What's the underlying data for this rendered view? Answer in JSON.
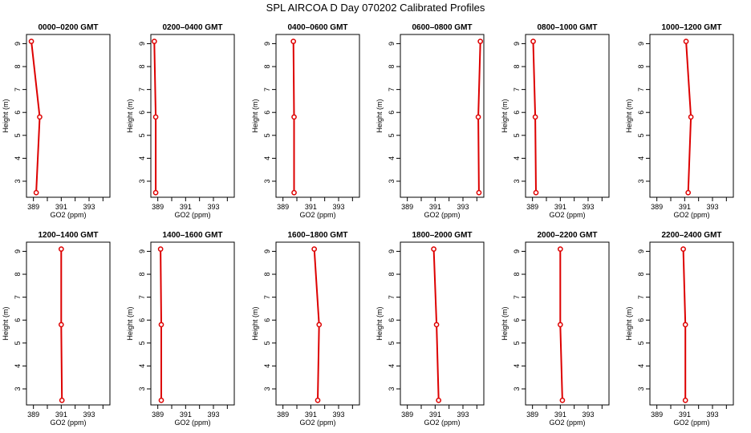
{
  "title": "SPL AIRCOA D  Day 070202  Calibrated Profiles",
  "colors": {
    "line": "#dd0000",
    "axis": "#000000"
  },
  "chart_data": [
    {
      "type": "line",
      "title": "0000–0200 GMT",
      "xlabel": "GO2 (ppm)",
      "ylabel": "Height (m)",
      "xlim": [
        388.5,
        394.5
      ],
      "ylim": [
        2.3,
        9.4
      ],
      "xticks": [
        "389",
        "391",
        "393"
      ],
      "yticks": [
        "3",
        "4",
        "5",
        "6",
        "7",
        "8",
        "9"
      ],
      "series": [
        {
          "x": [
            388.85,
            389.45,
            389.2
          ],
          "y": [
            9.1,
            5.8,
            2.5
          ]
        }
      ]
    },
    {
      "type": "line",
      "title": "0200–0400 GMT",
      "xlabel": "GO2 (ppm)",
      "ylabel": "Height (m)",
      "xlim": [
        388.5,
        394.5
      ],
      "ylim": [
        2.3,
        9.4
      ],
      "xticks": [
        "389",
        "391",
        "393"
      ],
      "yticks": [
        "3",
        "4",
        "5",
        "6",
        "7",
        "8",
        "9"
      ],
      "series": [
        {
          "x": [
            388.75,
            388.85,
            388.85
          ],
          "y": [
            9.1,
            5.8,
            2.5
          ]
        }
      ]
    },
    {
      "type": "line",
      "title": "0400–0600 GMT",
      "xlabel": "GO2 (ppm)",
      "ylabel": "Height (m)",
      "xlim": [
        388.5,
        394.5
      ],
      "ylim": [
        2.3,
        9.4
      ],
      "xticks": [
        "389",
        "391",
        "393"
      ],
      "yticks": [
        "3",
        "4",
        "5",
        "6",
        "7",
        "8",
        "9"
      ],
      "series": [
        {
          "x": [
            389.75,
            389.8,
            389.8
          ],
          "y": [
            9.1,
            5.8,
            2.5
          ]
        }
      ]
    },
    {
      "type": "line",
      "title": "0600–0800 GMT",
      "xlabel": "GO2 (ppm)",
      "ylabel": "Height (m)",
      "xlim": [
        388.5,
        394.5
      ],
      "ylim": [
        2.3,
        9.4
      ],
      "xticks": [
        "389",
        "391",
        "393"
      ],
      "yticks": [
        "3",
        "4",
        "5",
        "6",
        "7",
        "8",
        "9"
      ],
      "series": [
        {
          "x": [
            394.25,
            394.1,
            394.15
          ],
          "y": [
            9.1,
            5.8,
            2.5
          ]
        }
      ]
    },
    {
      "type": "line",
      "title": "0800–1000 GMT",
      "xlabel": "GO2 (ppm)",
      "ylabel": "Height (m)",
      "xlim": [
        388.5,
        394.5
      ],
      "ylim": [
        2.3,
        9.4
      ],
      "xticks": [
        "389",
        "391",
        "393"
      ],
      "yticks": [
        "3",
        "4",
        "5",
        "6",
        "7",
        "8",
        "9"
      ],
      "series": [
        {
          "x": [
            389.05,
            389.2,
            389.25
          ],
          "y": [
            9.1,
            5.8,
            2.5
          ]
        }
      ]
    },
    {
      "type": "line",
      "title": "1000–1200 GMT",
      "xlabel": "GO2 (ppm)",
      "ylabel": "Height (m)",
      "xlim": [
        388.5,
        394.5
      ],
      "ylim": [
        2.3,
        9.4
      ],
      "xticks": [
        "389",
        "391",
        "393"
      ],
      "yticks": [
        "3",
        "4",
        "5",
        "6",
        "7",
        "8",
        "9"
      ],
      "series": [
        {
          "x": [
            391.1,
            391.45,
            391.25
          ],
          "y": [
            9.1,
            5.8,
            2.5
          ]
        }
      ]
    },
    {
      "type": "line",
      "title": "1200–1400 GMT",
      "xlabel": "GO2 (ppm)",
      "ylabel": "Height (m)",
      "xlim": [
        388.5,
        394.5
      ],
      "ylim": [
        2.3,
        9.4
      ],
      "xticks": [
        "389",
        "391",
        "393"
      ],
      "yticks": [
        "3",
        "4",
        "5",
        "6",
        "7",
        "8",
        "9"
      ],
      "series": [
        {
          "x": [
            391.0,
            391.0,
            391.05
          ],
          "y": [
            9.1,
            5.8,
            2.5
          ]
        }
      ]
    },
    {
      "type": "line",
      "title": "1400–1600 GMT",
      "xlabel": "GO2 (ppm)",
      "ylabel": "Height (m)",
      "xlim": [
        388.5,
        394.5
      ],
      "ylim": [
        2.3,
        9.4
      ],
      "xticks": [
        "389",
        "391",
        "393"
      ],
      "yticks": [
        "3",
        "4",
        "5",
        "6",
        "7",
        "8",
        "9"
      ],
      "series": [
        {
          "x": [
            389.2,
            389.25,
            389.25
          ],
          "y": [
            9.1,
            5.8,
            2.5
          ]
        }
      ]
    },
    {
      "type": "line",
      "title": "1600–1800 GMT",
      "xlabel": "GO2 (ppm)",
      "ylabel": "Height (m)",
      "xlim": [
        388.5,
        394.5
      ],
      "ylim": [
        2.3,
        9.4
      ],
      "xticks": [
        "389",
        "391",
        "393"
      ],
      "yticks": [
        "3",
        "4",
        "5",
        "6",
        "7",
        "8",
        "9"
      ],
      "series": [
        {
          "x": [
            391.25,
            391.6,
            391.5
          ],
          "y": [
            9.1,
            5.8,
            2.5
          ]
        }
      ]
    },
    {
      "type": "line",
      "title": "1800–2000 GMT",
      "xlabel": "GO2 (ppm)",
      "ylabel": "Height (m)",
      "xlim": [
        388.5,
        394.5
      ],
      "ylim": [
        2.3,
        9.4
      ],
      "xticks": [
        "389",
        "391",
        "393"
      ],
      "yticks": [
        "3",
        "4",
        "5",
        "6",
        "7",
        "8",
        "9"
      ],
      "series": [
        {
          "x": [
            390.9,
            391.1,
            391.25
          ],
          "y": [
            9.1,
            5.8,
            2.5
          ]
        }
      ]
    },
    {
      "type": "line",
      "title": "2000–2200 GMT",
      "xlabel": "GO2 (ppm)",
      "ylabel": "Height (m)",
      "xlim": [
        388.5,
        394.5
      ],
      "ylim": [
        2.3,
        9.4
      ],
      "xticks": [
        "389",
        "391",
        "393"
      ],
      "yticks": [
        "3",
        "4",
        "5",
        "6",
        "7",
        "8",
        "9"
      ],
      "series": [
        {
          "x": [
            391.0,
            391.0,
            391.15
          ],
          "y": [
            9.1,
            5.8,
            2.5
          ]
        }
      ]
    },
    {
      "type": "line",
      "title": "2200–2400 GMT",
      "xlabel": "GO2 (ppm)",
      "ylabel": "Height (m)",
      "xlim": [
        388.5,
        394.5
      ],
      "ylim": [
        2.3,
        9.4
      ],
      "xticks": [
        "389",
        "391",
        "393"
      ],
      "yticks": [
        "3",
        "4",
        "5",
        "6",
        "7",
        "8",
        "9"
      ],
      "series": [
        {
          "x": [
            390.9,
            391.05,
            391.05
          ],
          "y": [
            9.1,
            5.8,
            2.5
          ]
        }
      ]
    }
  ]
}
